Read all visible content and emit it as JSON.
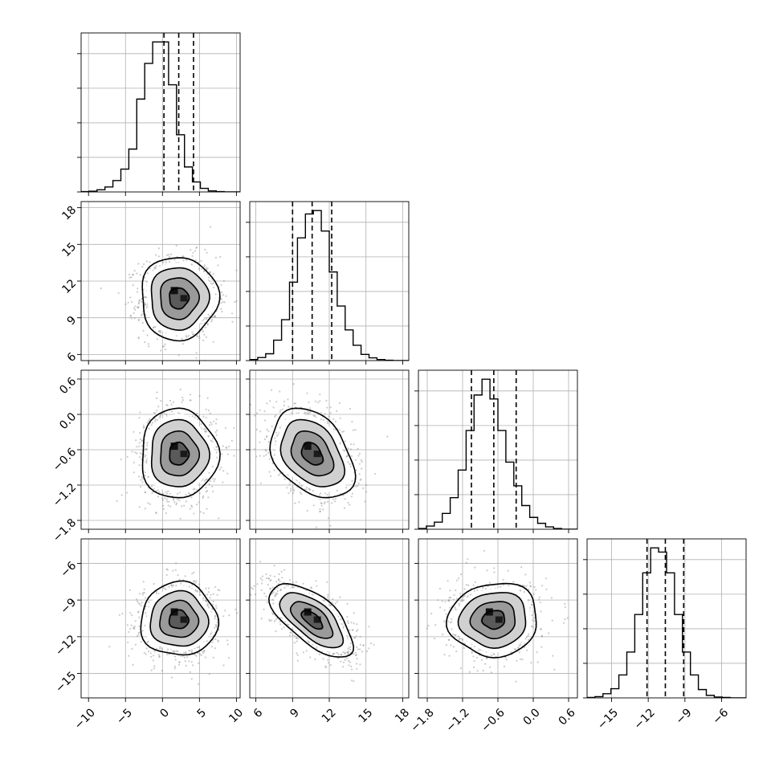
{
  "chart_data": {
    "type": "corner",
    "grid": true,
    "params": [
      {
        "range": [
          -11,
          10.5
        ],
        "ticks": [
          -10,
          -5,
          0,
          5,
          10
        ],
        "tick_labels": [
          "−10",
          "−5",
          "0",
          "5",
          "10"
        ],
        "quantiles": [
          0.2,
          2.2,
          4.2
        ],
        "median": 2.2,
        "sigma": 2.6
      },
      {
        "range": [
          5.5,
          18.5
        ],
        "ticks": [
          6,
          9,
          12,
          15,
          18
        ],
        "tick_labels": [
          "6",
          "9",
          "12",
          "15",
          "18"
        ],
        "quantiles": [
          9.0,
          10.6,
          12.2
        ],
        "median": 10.6,
        "sigma": 1.7
      },
      {
        "range": [
          -1.95,
          0.75
        ],
        "ticks": [
          -1.8,
          -1.2,
          -0.6,
          0.0,
          0.6
        ],
        "tick_labels": [
          "−1.8",
          "−1.2",
          "−0.6",
          "0.0",
          "0.6"
        ],
        "quantiles": [
          -1.05,
          -0.67,
          -0.29
        ],
        "median": -0.67,
        "sigma": 0.38
      },
      {
        "range": [
          -17,
          -4
        ],
        "ticks": [
          -15,
          -12,
          -9,
          -6
        ],
        "tick_labels": [
          "−15",
          "−12",
          "−9",
          "−6"
        ],
        "quantiles": [
          -12.1,
          -10.6,
          -9.1
        ],
        "median": -10.6,
        "sigma": 1.5
      }
    ],
    "correlations": {
      "1-0": 0.0,
      "2-0": 0.0,
      "2-1": -0.35,
      "3-0": 0.0,
      "3-1": -0.65,
      "3-2": 0.05
    },
    "contour_levels_sigma": [
      0.5,
      1.0,
      1.5,
      2.0
    ],
    "hist_bins": 20,
    "hist_counts": [
      [
        1,
        2,
        6,
        14,
        32,
        64,
        120,
        260,
        360,
        420,
        420,
        300,
        160,
        70,
        28,
        10,
        3,
        1,
        0,
        0
      ],
      [
        3,
        9,
        20,
        60,
        120,
        230,
        360,
        430,
        440,
        380,
        260,
        160,
        90,
        45,
        18,
        8,
        3,
        1,
        0,
        0
      ],
      [
        2,
        8,
        18,
        40,
        80,
        150,
        250,
        340,
        380,
        330,
        250,
        170,
        110,
        60,
        30,
        15,
        6,
        2,
        0,
        0
      ],
      [
        1,
        3,
        10,
        22,
        55,
        110,
        200,
        300,
        360,
        350,
        300,
        200,
        110,
        55,
        20,
        6,
        2,
        1,
        0,
        0
      ]
    ]
  }
}
